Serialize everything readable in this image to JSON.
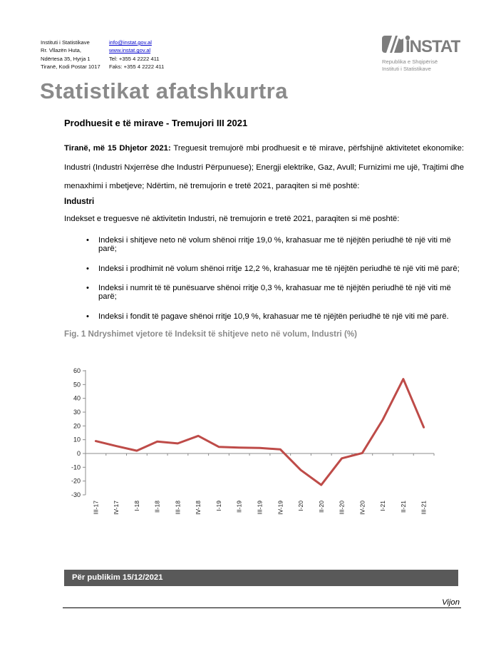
{
  "header": {
    "address": [
      "Instituti i Statistikave",
      "Rr. Vllazën Huta,",
      "Ndërtesa 35, Hyrja 1",
      "Tiranë, Kodi Postar 1017"
    ],
    "contact": {
      "email": "info@instat.gov.al",
      "website": "www.instat.gov.al",
      "tel": "Tel: +355 4 2222 411",
      "fax": "Faks: +355 4 2222 411"
    },
    "logo": {
      "name": "INSTAT",
      "subtitle1": "Republika e Shqipërisë",
      "subtitle2": "Instituti i Statistikave"
    }
  },
  "page_title": "Statistikat afatshkurtra",
  "report": {
    "subtitle": "Prodhuesit e të mirave - Tremujori III 2021",
    "intro_bold": "Tiranë, më 15 Dhjetor 2021:",
    "intro_text": "Treguesit tremujorë mbi prodhuesit e të mirave, përfshijnë aktivitetet ekonomike: Industri (Industri Nxjerrëse dhe Industri Përpunuese); Energji elektrike, Gaz, Avull; Furnizimi me ujë, Trajtimi dhe menaxhimi i mbetjeve; Ndërtim, në tremujorin e tretë 2021, paraqiten si më poshtë:",
    "section_heading": "Industri",
    "section_intro": "Indekset e treguesve në aktivitetin Industri, në tremujorin e tretë 2021, paraqiten si më poshtë:",
    "bullets": [
      "Indeksi i shitjeve neto në volum shënoi rritje 19,0 %, krahasuar me të njëjtën periudhë të një viti më parë;",
      "Indeksi i prodhimit në volum shënoi rritje 12,2 %, krahasuar me të njëjtën periudhë të një viti më parë;",
      "Indeksi i numrit të të punësuarve shënoi rritje 0,3 %, krahasuar me të njëjtën periudhë të një viti më parë;",
      "Indeksi i fondit të pagave shënoi rritje 10,9 %, krahasuar me të njëjtën periudhë të një viti më parë."
    ]
  },
  "chart_data": {
    "type": "line",
    "title": "Fig. 1 Ndryshimet vjetore të Indeksit të shitjeve neto në volum, Industri (%)",
    "categories": [
      "III-17",
      "IV-17",
      "I-18",
      "II-18",
      "III-18",
      "IV-18",
      "I-19",
      "II-19",
      "III-19",
      "IV-19",
      "I-20",
      "II-20",
      "III-20",
      "IV-20",
      "I-21",
      "II-21",
      "III-21"
    ],
    "values": [
      9.0,
      5.4,
      2.0,
      8.7,
      7.3,
      12.8,
      4.8,
      4.3,
      4.0,
      3.0,
      -12.0,
      -22.8,
      -3.5,
      0.3,
      24.5,
      54.0,
      19.0
    ],
    "xlabel": "",
    "ylabel": "",
    "ylim": [
      -30,
      60
    ],
    "ytick_step": 10,
    "grid": false,
    "legend": false,
    "line_color": "#BE4B48",
    "axis_color": "#8c8c8c",
    "tick_label_color": "#1a1a1a"
  },
  "footer": {
    "publish_label": "Për publikim 15/12/2021",
    "continued": "Vijon"
  },
  "colors": {
    "title_gray": "#8a8a8a",
    "footer_bar": "#595959",
    "link_blue": "#0000cc",
    "logo_gray": "#7d7d7d"
  }
}
